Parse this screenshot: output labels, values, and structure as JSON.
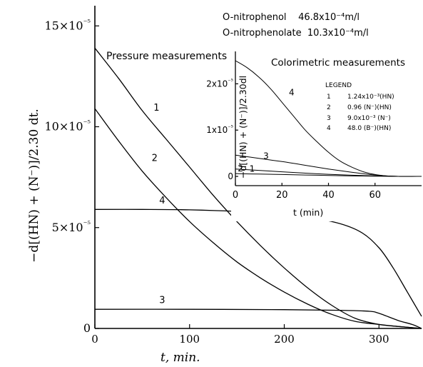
{
  "header": {
    "line1": "O-nitrophenol    46.8x10⁻⁴m/l",
    "line2": "O-nitrophenolate  10.3x10⁻⁴m/l"
  },
  "chart_data": [
    {
      "type": "line",
      "title": "Pressure measurements",
      "xlabel": "t, min.",
      "ylabel": "−d[(HN) + (N⁻)]/2.30 dt.",
      "xlim": [
        0,
        345
      ],
      "ylim": [
        0,
        0.00016
      ],
      "x_ticks": [
        0,
        100,
        200,
        300
      ],
      "y_ticks": [
        {
          "value": 0,
          "label": "0"
        },
        {
          "value": 5e-05,
          "label": "5×10⁻⁵"
        },
        {
          "value": 0.0001,
          "label": "10×10⁻⁵"
        },
        {
          "value": 0.00015,
          "label": "15×10⁻⁵"
        }
      ],
      "grid": false,
      "series": [
        {
          "name": "1",
          "label_x": 62,
          "label_y": 0.000108,
          "x": [
            0,
            25,
            50,
            75,
            100,
            125,
            150,
            175,
            200,
            225,
            250,
            275,
            300,
            320,
            345
          ],
          "y": [
            0.000139,
            0.000124,
            0.000108,
            9.4e-05,
            8e-05,
            6.6e-05,
            5.3e-05,
            4.1e-05,
            3e-05,
            2e-05,
            1.15e-05,
            5e-06,
            2e-06,
            1e-06,
            0
          ]
        },
        {
          "name": "2",
          "label_x": 60,
          "label_y": 8.3e-05,
          "x": [
            0,
            25,
            50,
            75,
            100,
            125,
            150,
            175,
            200,
            225,
            250,
            275,
            300,
            320,
            345
          ],
          "y": [
            0.000109,
            9.3e-05,
            7.8e-05,
            6.5e-05,
            5.3e-05,
            4.25e-05,
            3.3e-05,
            2.5e-05,
            1.8e-05,
            1.2e-05,
            7e-06,
            3.5e-06,
            2e-06,
            1e-06,
            0
          ]
        },
        {
          "name": "4",
          "label_x": 68,
          "label_y": 6.2e-05,
          "x": [
            0,
            50,
            100,
            150,
            200,
            250,
            280,
            300,
            315,
            330,
            345
          ],
          "y": [
            5.9e-05,
            5.9e-05,
            5.88e-05,
            5.8e-05,
            5.65e-05,
            5.3e-05,
            4.8e-05,
            4e-05,
            3e-05,
            1.8e-05,
            6e-06
          ]
        },
        {
          "name": "3",
          "label_x": 68,
          "label_y": 1.25e-05,
          "x": [
            0,
            100,
            200,
            260,
            290,
            300,
            320,
            335,
            345
          ],
          "y": [
            9.5e-06,
            9.5e-06,
            9.3e-06,
            9e-06,
            8.5e-06,
            7.5e-06,
            4e-06,
            2e-06,
            0
          ]
        }
      ]
    },
    {
      "type": "line",
      "title": "Colorimetric measurements",
      "xlabel": "t (min)",
      "ylabel": "−d[(HN) + (N⁻)]/2.30dl",
      "xlim": [
        0,
        80
      ],
      "ylim": [
        -2e-06,
        2.7e-05
      ],
      "x_ticks": [
        0,
        20,
        40,
        60
      ],
      "y_ticks": [
        {
          "value": 0,
          "label": "0"
        },
        {
          "value": 1e-05,
          "label": "1x10⁻⁵"
        },
        {
          "value": 2e-05,
          "label": "2x10⁻⁵"
        }
      ],
      "grid": false,
      "legend": {
        "position": "top-right",
        "title": "LEGEND",
        "entries": [
          {
            "id": "1",
            "text": "1.24x10⁻³(HN)"
          },
          {
            "id": "2",
            "text": "0.96 (N⁻)(HN)"
          },
          {
            "id": "3",
            "text": "9.0x10⁻³ (N⁻)"
          },
          {
            "id": "4",
            "text": "48.0 (B⁻)(HN)"
          }
        ]
      },
      "series": [
        {
          "name": "4",
          "label_x": 23,
          "label_y": 1.75e-05,
          "x": [
            0,
            5,
            10,
            15,
            20,
            25,
            30,
            35,
            40,
            45,
            50,
            55,
            60,
            65,
            70,
            80
          ],
          "y": [
            2.5e-05,
            2.35e-05,
            2.15e-05,
            1.9e-05,
            1.6e-05,
            1.3e-05,
            1e-05,
            7.5e-06,
            5.2e-06,
            3.3e-06,
            2e-06,
            1e-06,
            4e-07,
            1e-07,
            0,
            0
          ]
        },
        {
          "name": "3",
          "label_x": 12,
          "label_y": 3.8e-06,
          "x": [
            0,
            10,
            20,
            30,
            40,
            50,
            60,
            70,
            80
          ],
          "y": [
            4.6e-06,
            3.9e-06,
            3.2e-06,
            2.4e-06,
            1.6e-06,
            9e-07,
            3e-07,
            0,
            0
          ]
        },
        {
          "name": "2",
          "label_x": 1,
          "label_y": 1.1e-06,
          "x": [
            0,
            10,
            20,
            30,
            40,
            50,
            60,
            70,
            80
          ],
          "y": [
            1.6e-06,
            1.3e-06,
            1e-06,
            7e-07,
            4.5e-07,
            2.5e-07,
            1e-07,
            0,
            0
          ]
        },
        {
          "name": "1",
          "label_x": 6,
          "label_y": 1e-06,
          "x": [
            0,
            10,
            20,
            30,
            40,
            50,
            60,
            70,
            80
          ],
          "y": [
            6e-07,
            5e-07,
            4e-07,
            3e-07,
            2e-07,
            1e-07,
            5e-08,
            0,
            0
          ]
        }
      ]
    }
  ]
}
